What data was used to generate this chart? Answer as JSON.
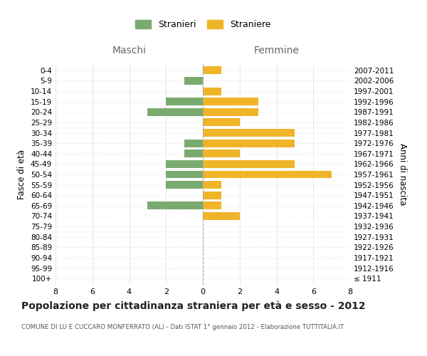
{
  "age_groups": [
    "100+",
    "95-99",
    "90-94",
    "85-89",
    "80-84",
    "75-79",
    "70-74",
    "65-69",
    "60-64",
    "55-59",
    "50-54",
    "45-49",
    "40-44",
    "35-39",
    "30-34",
    "25-29",
    "20-24",
    "15-19",
    "10-14",
    "5-9",
    "0-4"
  ],
  "birth_years": [
    "≤ 1911",
    "1912-1916",
    "1917-1921",
    "1922-1926",
    "1927-1931",
    "1932-1936",
    "1937-1941",
    "1942-1946",
    "1947-1951",
    "1952-1956",
    "1957-1961",
    "1962-1966",
    "1967-1971",
    "1972-1976",
    "1977-1981",
    "1982-1986",
    "1987-1991",
    "1992-1996",
    "1997-2001",
    "2002-2006",
    "2007-2011"
  ],
  "maschi": [
    0,
    0,
    0,
    0,
    0,
    0,
    0,
    3,
    0,
    2,
    2,
    2,
    1,
    1,
    0,
    0,
    3,
    2,
    0,
    1,
    0
  ],
  "femmine": [
    0,
    0,
    0,
    0,
    0,
    0,
    2,
    1,
    1,
    1,
    7,
    5,
    2,
    5,
    5,
    2,
    3,
    3,
    1,
    0,
    1
  ],
  "maschi_color": "#7aab6e",
  "femmine_color": "#f0b429",
  "xlim": 8,
  "title": "Popolazione per cittadinanza straniera per età e sesso - 2012",
  "subtitle": "COMUNE DI LU E CUCCARO MONFERRATO (AL) - Dati ISTAT 1° gennaio 2012 - Elaborazione TUTTITALIA.IT",
  "legend_maschi": "Stranieri",
  "legend_femmine": "Straniere",
  "xlabel_left": "Maschi",
  "xlabel_right": "Femmine",
  "ylabel_left": "Fasce di età",
  "ylabel_right": "Anni di nascita",
  "bg_color": "#ffffff",
  "grid_color": "#cccccc",
  "bar_height": 0.75
}
